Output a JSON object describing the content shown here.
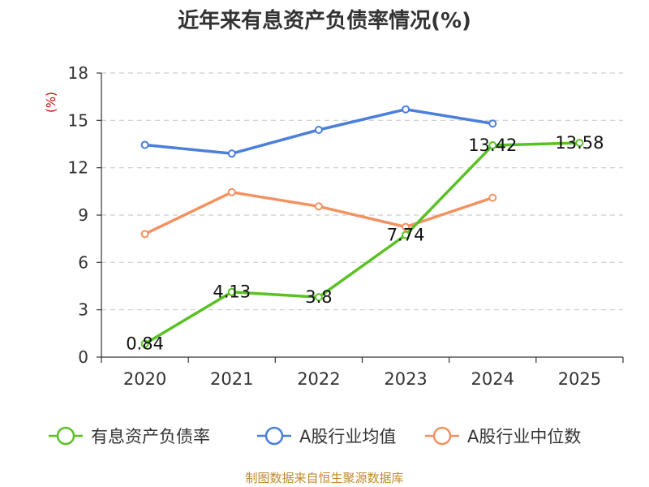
{
  "chart_data": {
    "type": "line",
    "title": "近年来有息资产负债率情况(%)",
    "ylabel": "(%)",
    "categories": [
      "2020",
      "2021",
      "2022",
      "2023",
      "2024",
      "2025"
    ],
    "ylim": [
      0,
      18
    ],
    "yticks": [
      "0",
      "3",
      "6",
      "9",
      "12",
      "15",
      "18"
    ],
    "grid": true,
    "legend_position": "bottom",
    "series": [
      {
        "name": "有息资产负债率",
        "color": "#5ac125",
        "values": [
          0.84,
          4.13,
          3.8,
          7.74,
          13.42,
          13.58
        ],
        "labels": [
          "0.84",
          "4.13",
          "3.8",
          "7.74",
          "13.42",
          "13.58"
        ]
      },
      {
        "name": "A股行业均值",
        "color": "#4a7fdb",
        "values": [
          13.45,
          12.9,
          14.4,
          15.7,
          14.8,
          null
        ]
      },
      {
        "name": "A股行业中位数",
        "color": "#f39261",
        "values": [
          7.8,
          10.45,
          9.55,
          8.25,
          10.1,
          null
        ]
      }
    ]
  },
  "footer": {
    "source": "制图数据来自恒生聚源数据库"
  }
}
